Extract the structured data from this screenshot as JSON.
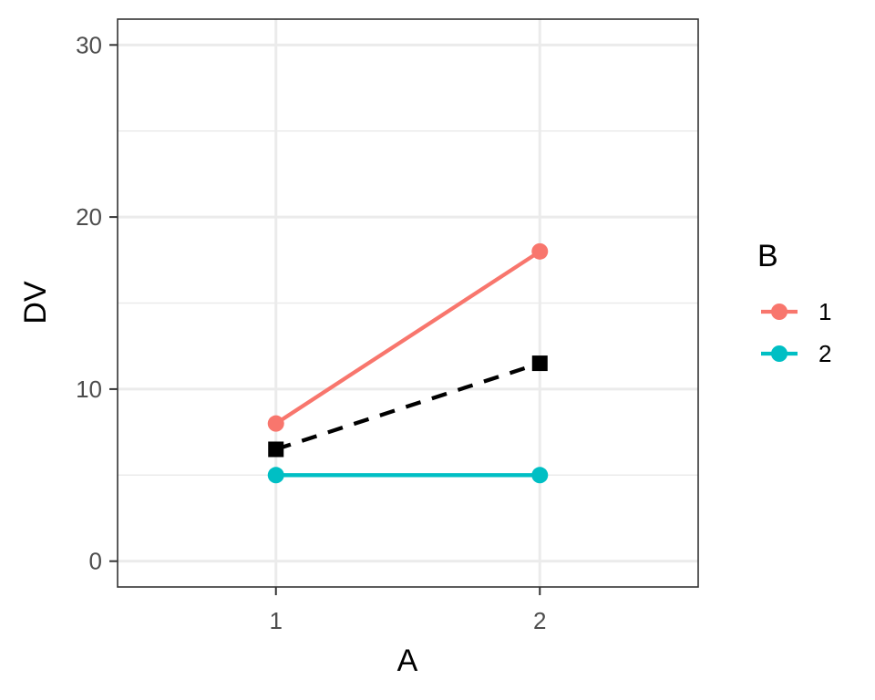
{
  "chart_data": {
    "type": "line",
    "xlabel": "A",
    "ylabel": "DV",
    "x_categories": [
      "1",
      "2"
    ],
    "ylim": [
      -1.5,
      31.5
    ],
    "yticks": [
      0,
      10,
      20,
      30
    ],
    "y_minor_ticks": [
      5,
      15,
      25
    ],
    "grid": true,
    "legend": {
      "title": "B",
      "placement": "right",
      "entries": [
        "1",
        "2"
      ]
    },
    "series": [
      {
        "name": "1",
        "x": [
          "1",
          "2"
        ],
        "values": [
          8,
          18
        ],
        "color": "#F8766D",
        "marker": "circle",
        "line": "solid"
      },
      {
        "name": "2",
        "x": [
          "1",
          "2"
        ],
        "values": [
          5,
          5
        ],
        "color": "#00BFC4",
        "marker": "circle",
        "line": "solid"
      }
    ],
    "mean_line": {
      "x": [
        "1",
        "2"
      ],
      "values": [
        6.5,
        11.5
      ],
      "color": "#000000",
      "marker": "square",
      "line": "dashed"
    }
  }
}
